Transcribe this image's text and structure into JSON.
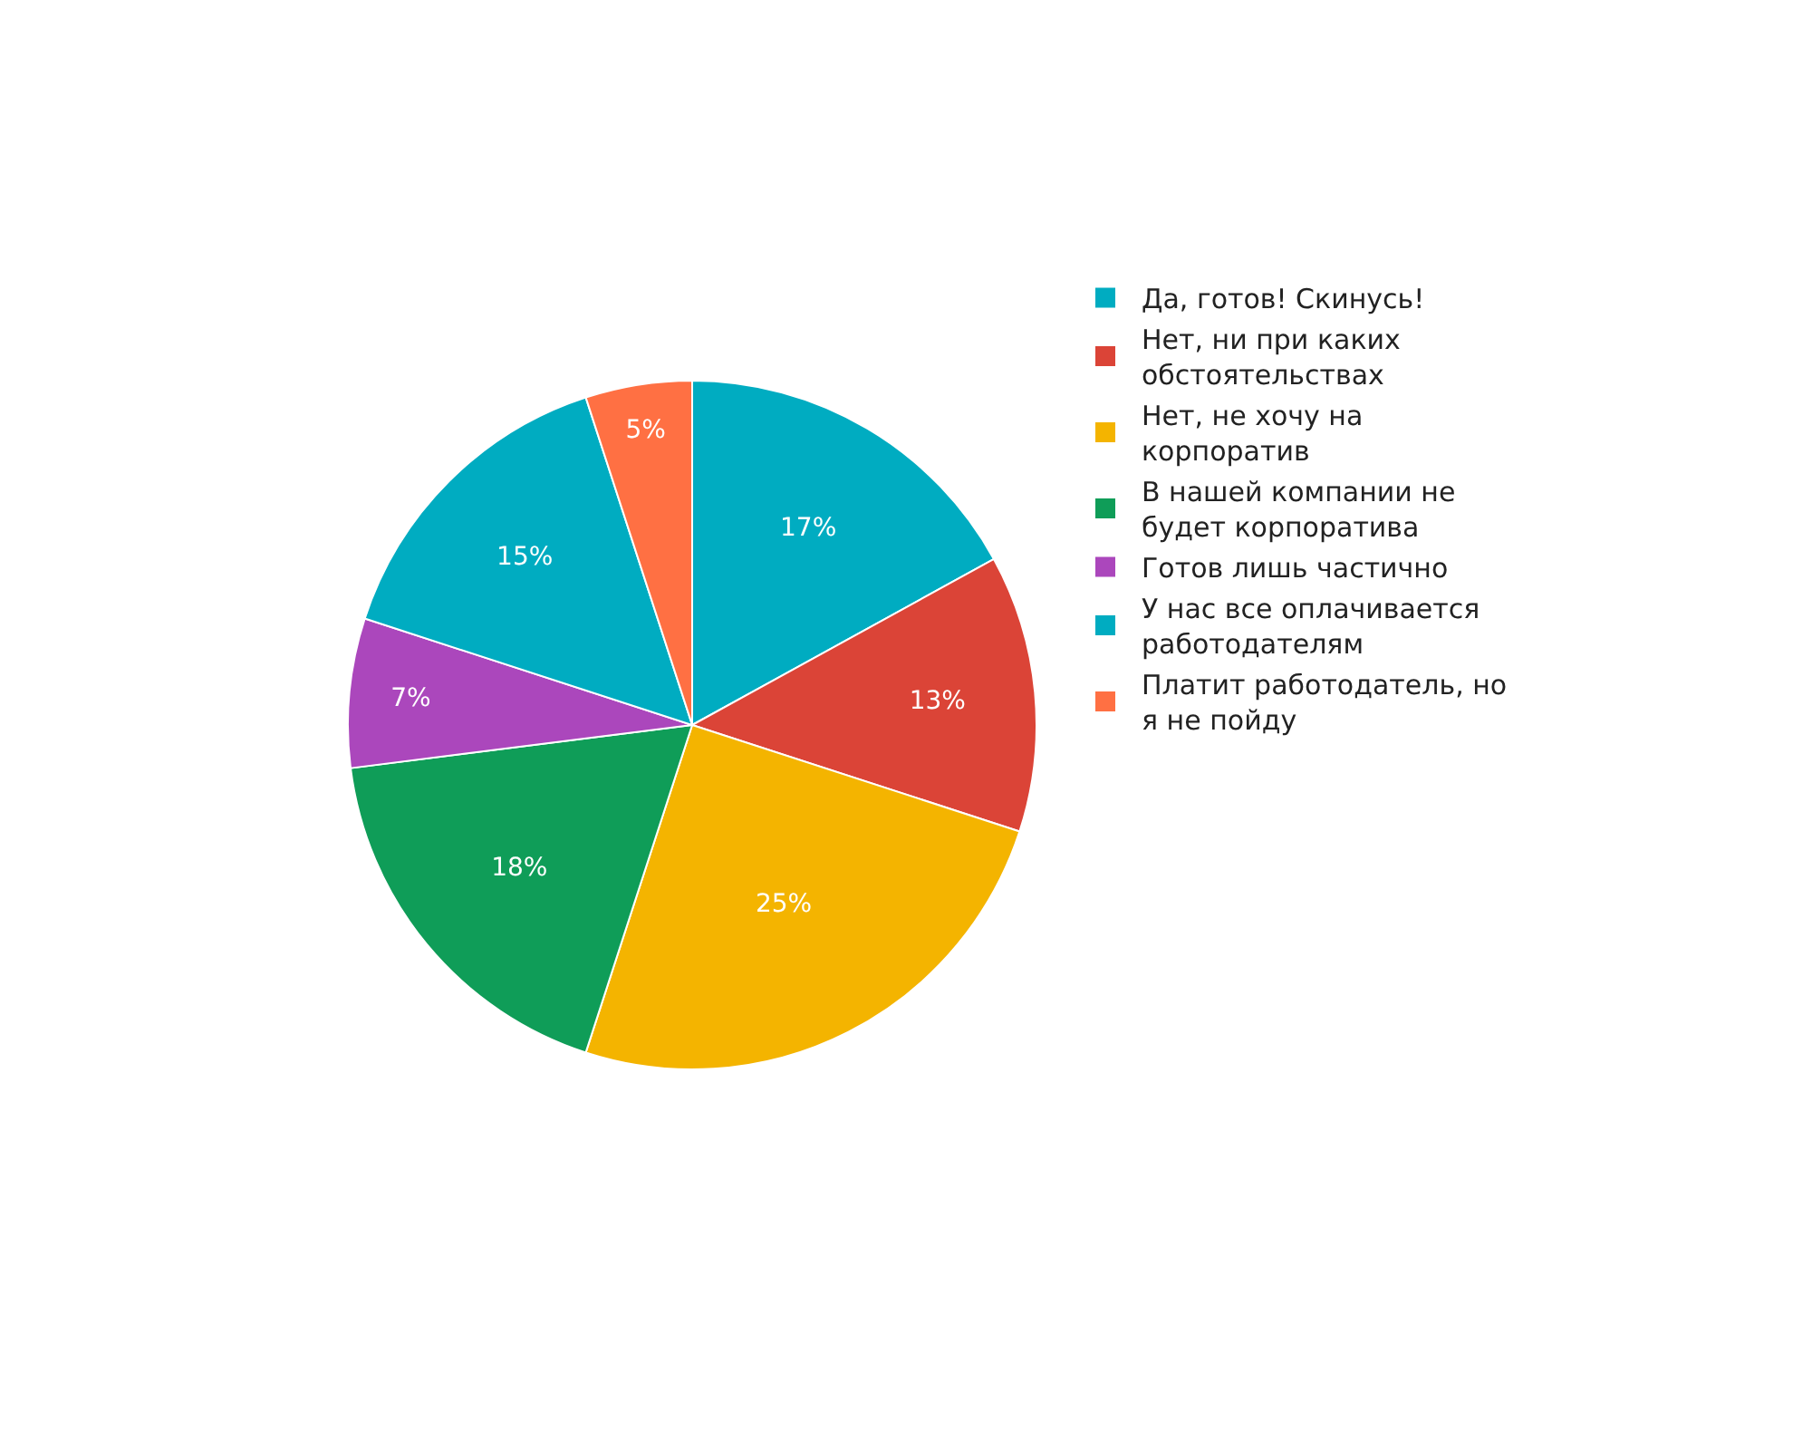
{
  "chart_data": {
    "type": "pie",
    "categories": [
      "Да, готов! Скинусь!",
      "Нет, ни при каких обстоятельствах",
      "Нет, не хочу на корпоратив",
      "В нашей компании не будет корпоратива",
      "Готов лишь частично",
      "У нас все оплачивается работодателям",
      "Платит работодатель, но я не пойду"
    ],
    "values": [
      17,
      13,
      25,
      18,
      7,
      15,
      5
    ],
    "value_labels": [
      "17%",
      "13%",
      "25%",
      "18%",
      "7%",
      "15%",
      "5%"
    ],
    "colors": [
      "#00acc1",
      "#db4437",
      "#f4b400",
      "#0f9d58",
      "#ab47bc",
      "#00acc1",
      "#ff7043"
    ],
    "legend": "right"
  }
}
